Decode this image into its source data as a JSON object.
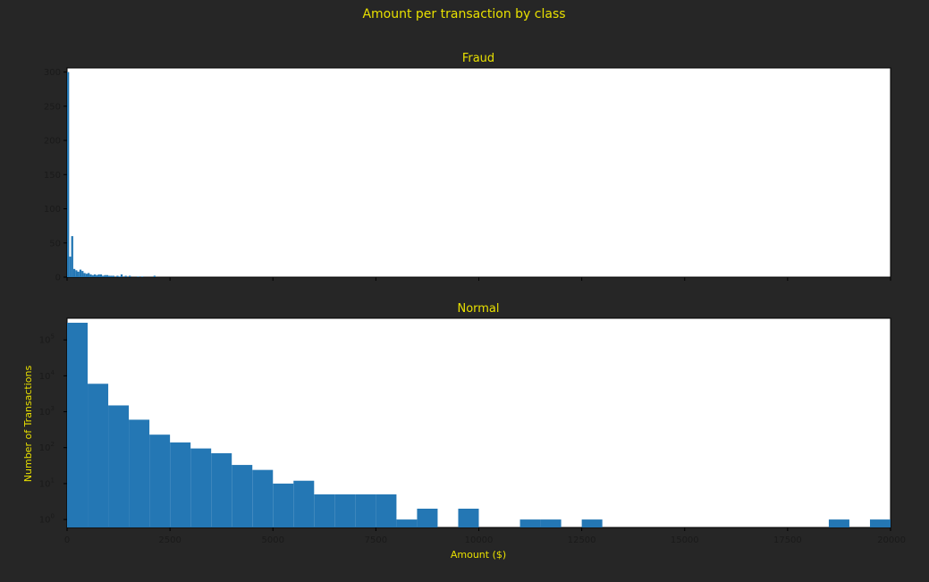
{
  "figure": {
    "title": "Amount per transaction by class",
    "background": "#262626",
    "text_color": "#e8e000",
    "bar_color": "#2477b4"
  },
  "chart_data": [
    {
      "type": "bar",
      "title": "Fraud",
      "xlabel": "",
      "ylabel": "",
      "xlim": [
        0,
        20000
      ],
      "ylim": [
        0,
        306
      ],
      "yscale": "linear",
      "grid": false,
      "bin_width": 50,
      "yticks": [
        "0",
        "50",
        "100",
        "150",
        "200",
        "250",
        "300"
      ],
      "bins": [
        {
          "x": 0,
          "y": 300
        },
        {
          "x": 50,
          "y": 30
        },
        {
          "x": 100,
          "y": 60
        },
        {
          "x": 150,
          "y": 12
        },
        {
          "x": 200,
          "y": 10
        },
        {
          "x": 250,
          "y": 8
        },
        {
          "x": 300,
          "y": 11
        },
        {
          "x": 350,
          "y": 9
        },
        {
          "x": 400,
          "y": 6
        },
        {
          "x": 450,
          "y": 5
        },
        {
          "x": 500,
          "y": 6
        },
        {
          "x": 550,
          "y": 4
        },
        {
          "x": 600,
          "y": 3
        },
        {
          "x": 650,
          "y": 4
        },
        {
          "x": 700,
          "y": 3
        },
        {
          "x": 750,
          "y": 4
        },
        {
          "x": 800,
          "y": 4
        },
        {
          "x": 850,
          "y": 2
        },
        {
          "x": 900,
          "y": 3
        },
        {
          "x": 950,
          "y": 3
        },
        {
          "x": 1000,
          "y": 2
        },
        {
          "x": 1050,
          "y": 2
        },
        {
          "x": 1100,
          "y": 2
        },
        {
          "x": 1200,
          "y": 2
        },
        {
          "x": 1250,
          "y": 1
        },
        {
          "x": 1300,
          "y": 4
        },
        {
          "x": 1400,
          "y": 2
        },
        {
          "x": 1500,
          "y": 2
        },
        {
          "x": 1700,
          "y": 1
        },
        {
          "x": 1800,
          "y": 1
        },
        {
          "x": 2100,
          "y": 2
        }
      ]
    },
    {
      "type": "bar",
      "title": "Normal",
      "xlabel": "Amount ($)",
      "ylabel": "Number of Transactions",
      "xlim": [
        0,
        20000
      ],
      "ylim": [
        0.6,
        400000
      ],
      "yscale": "log",
      "grid": false,
      "bin_width": 500,
      "xticks": [
        "0",
        "2500",
        "5000",
        "7500",
        "10000",
        "12500",
        "15000",
        "17500",
        "20000"
      ],
      "yticks": [
        {
          "base": "10",
          "exp": "0"
        },
        {
          "base": "10",
          "exp": "1"
        },
        {
          "base": "10",
          "exp": "2"
        },
        {
          "base": "10",
          "exp": "3"
        },
        {
          "base": "10",
          "exp": "4"
        },
        {
          "base": "10",
          "exp": "5"
        }
      ],
      "bins": [
        {
          "x": 0,
          "y": 300000
        },
        {
          "x": 500,
          "y": 6000
        },
        {
          "x": 1000,
          "y": 1500
        },
        {
          "x": 1500,
          "y": 600
        },
        {
          "x": 2000,
          "y": 230
        },
        {
          "x": 2500,
          "y": 140
        },
        {
          "x": 3000,
          "y": 95
        },
        {
          "x": 3500,
          "y": 70
        },
        {
          "x": 4000,
          "y": 33
        },
        {
          "x": 4500,
          "y": 24
        },
        {
          "x": 5000,
          "y": 10
        },
        {
          "x": 5500,
          "y": 12
        },
        {
          "x": 6000,
          "y": 5
        },
        {
          "x": 6500,
          "y": 5
        },
        {
          "x": 7000,
          "y": 5
        },
        {
          "x": 7500,
          "y": 5
        },
        {
          "x": 8000,
          "y": 1
        },
        {
          "x": 8500,
          "y": 2
        },
        {
          "x": 9500,
          "y": 2
        },
        {
          "x": 11000,
          "y": 1
        },
        {
          "x": 11500,
          "y": 1
        },
        {
          "x": 12500,
          "y": 1
        },
        {
          "x": 18500,
          "y": 1
        },
        {
          "x": 19500,
          "y": 1
        }
      ]
    }
  ]
}
